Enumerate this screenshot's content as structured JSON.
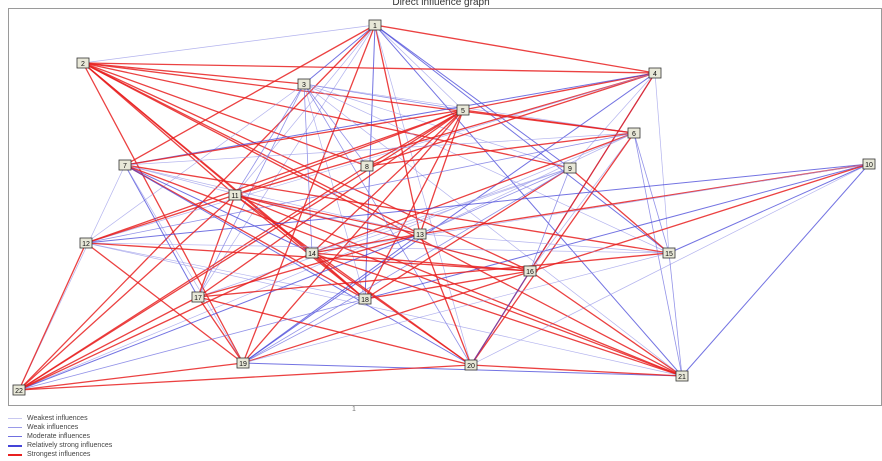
{
  "title": "Direct influence graph",
  "page_mark": "1",
  "colors": {
    "weakest": "#c8c8f0",
    "weak": "#9a9ae8",
    "moderate": "#6f6fe0",
    "relatively_strong": "#4444d8",
    "strongest": "#e82020"
  },
  "legend": [
    {
      "label": "Weakest influences",
      "level": "weakest"
    },
    {
      "label": "Weak influences",
      "level": "weak"
    },
    {
      "label": "Moderate influences",
      "level": "moderate"
    },
    {
      "label": "Relatively strong influences",
      "level": "relatively_strong"
    },
    {
      "label": "Strongest influences",
      "level": "strongest"
    }
  ],
  "nodes": [
    {
      "id": "n1",
      "label": "1"
    },
    {
      "id": "n2",
      "label": "2"
    },
    {
      "id": "n3",
      "label": "3"
    },
    {
      "id": "n4",
      "label": "4"
    },
    {
      "id": "n5",
      "label": "5"
    },
    {
      "id": "n6",
      "label": "6"
    },
    {
      "id": "n7",
      "label": "7"
    },
    {
      "id": "n8",
      "label": "8"
    },
    {
      "id": "n9",
      "label": "9"
    },
    {
      "id": "n10",
      "label": "10"
    },
    {
      "id": "n11",
      "label": "11"
    },
    {
      "id": "n12",
      "label": "12"
    },
    {
      "id": "n13",
      "label": "13"
    },
    {
      "id": "n14",
      "label": "14"
    },
    {
      "id": "n15",
      "label": "15"
    },
    {
      "id": "n16",
      "label": "16"
    },
    {
      "id": "n17",
      "label": "17"
    },
    {
      "id": "n18",
      "label": "18"
    },
    {
      "id": "n19",
      "label": "19"
    },
    {
      "id": "n20",
      "label": "20"
    },
    {
      "id": "n21",
      "label": "21"
    },
    {
      "id": "n22",
      "label": "22"
    },
    {
      "id": "n23",
      "label": "23"
    }
  ]
}
